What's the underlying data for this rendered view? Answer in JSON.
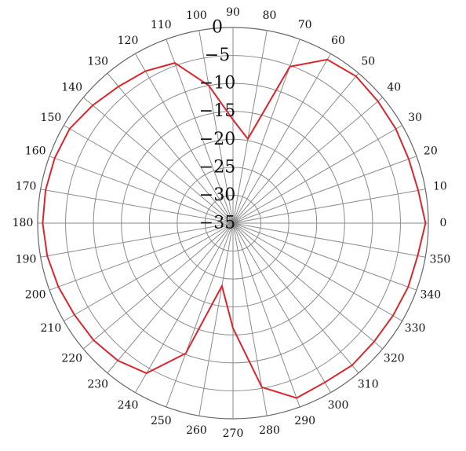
{
  "chart_data": {
    "type": "polar-line",
    "title": "",
    "angle_ticks": [
      "0",
      "10",
      "20",
      "30",
      "40",
      "50",
      "60",
      "70",
      "80",
      "90",
      "100",
      "110",
      "120",
      "130",
      "140",
      "150",
      "160",
      "170",
      "180",
      "190",
      "200",
      "210",
      "220",
      "230",
      "240",
      "250",
      "260",
      "270",
      "280",
      "290",
      "300",
      "310",
      "320",
      "330",
      "340",
      "350"
    ],
    "radial_ticks": [
      "0",
      "−5",
      "−10",
      "−15",
      "−20",
      "−25",
      "−30",
      "−35"
    ],
    "r_range": [
      -35,
      0
    ],
    "grid": true,
    "colors": {
      "series": "#d8262c",
      "grid": "#8a8a8a"
    },
    "series": [
      {
        "angles": [
          0,
          10,
          20,
          30,
          40,
          50,
          60,
          70,
          80,
          90,
          100,
          110,
          120,
          130,
          140,
          150,
          160,
          170,
          180,
          190,
          200,
          210,
          220,
          230,
          240,
          250,
          260,
          270,
          280,
          290,
          300,
          310,
          320,
          330,
          340,
          350
        ],
        "values": [
          -0.5,
          -1.3,
          -1.5,
          -1.3,
          -1.1,
          -0.7,
          -1.2,
          -5.2,
          -19.7,
          -16.5,
          -10.0,
          -4.5,
          -3.6,
          -3.1,
          -2.2,
          -1.2,
          -1.0,
          -0.9,
          -0.9,
          -1.2,
          -1.7,
          -2.2,
          -2.4,
          -2.9,
          -4.0,
          -10.2,
          -23.6,
          -16.2,
          -5.2,
          -1.7,
          -2.1,
          -1.8,
          -2.0,
          -1.9,
          -1.6,
          -1.4
        ]
      }
    ]
  }
}
